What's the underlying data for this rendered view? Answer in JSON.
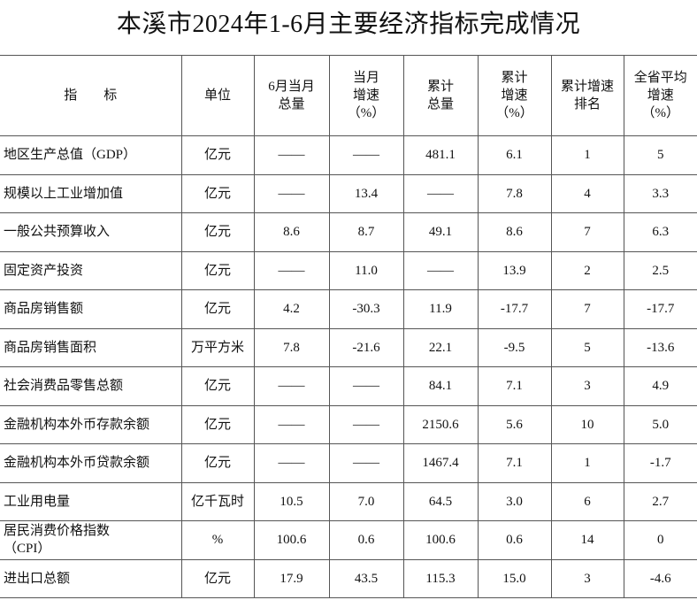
{
  "header": {
    "title": "本溪市2024年1-6月主要经济指标完成情况"
  },
  "table": {
    "columns": [
      "指　　标",
      "单位",
      "6月当月\n总量",
      "当月\n增速\n（%）",
      "累计\n总量",
      "累计\n增速\n（%）",
      "累计增速\n排名",
      "全省平均\n增速\n（%）"
    ],
    "rows": [
      [
        "地区生产总值（GDP）",
        "亿元",
        "——",
        "——",
        "481.1",
        "6.1",
        "1",
        "5"
      ],
      [
        "规模以上工业增加值",
        "亿元",
        "——",
        "13.4",
        "——",
        "7.8",
        "4",
        "3.3"
      ],
      [
        "一般公共预算收入",
        "亿元",
        "8.6",
        "8.7",
        "49.1",
        "8.6",
        "7",
        "6.3"
      ],
      [
        "固定资产投资",
        "亿元",
        "——",
        "11.0",
        "——",
        "13.9",
        "2",
        "2.5"
      ],
      [
        "商品房销售额",
        "亿元",
        "4.2",
        "-30.3",
        "11.9",
        "-17.7",
        "7",
        "-17.7"
      ],
      [
        "商品房销售面积",
        "万平方米",
        "7.8",
        "-21.6",
        "22.1",
        "-9.5",
        "5",
        "-13.6"
      ],
      [
        "社会消费品零售总额",
        "亿元",
        "——",
        "——",
        "84.1",
        "7.1",
        "3",
        "4.9"
      ],
      [
        "金融机构本外币存款余额",
        "亿元",
        "——",
        "——",
        "2150.6",
        "5.6",
        "10",
        "5.0"
      ],
      [
        "金融机构本外币贷款余额",
        "亿元",
        "——",
        "——",
        "1467.4",
        "7.1",
        "1",
        "-1.7"
      ],
      [
        "工业用电量",
        "亿千瓦时",
        "10.5",
        "7.0",
        "64.5",
        "3.0",
        "6",
        "2.7"
      ],
      [
        "居民消费价格指数\n（CPI）",
        "%",
        "100.6",
        "0.6",
        "100.6",
        "0.6",
        "14",
        "0"
      ],
      [
        "进出口总额",
        "亿元",
        "17.9",
        "43.5",
        "115.3",
        "15.0",
        "3",
        "-4.6"
      ]
    ]
  }
}
